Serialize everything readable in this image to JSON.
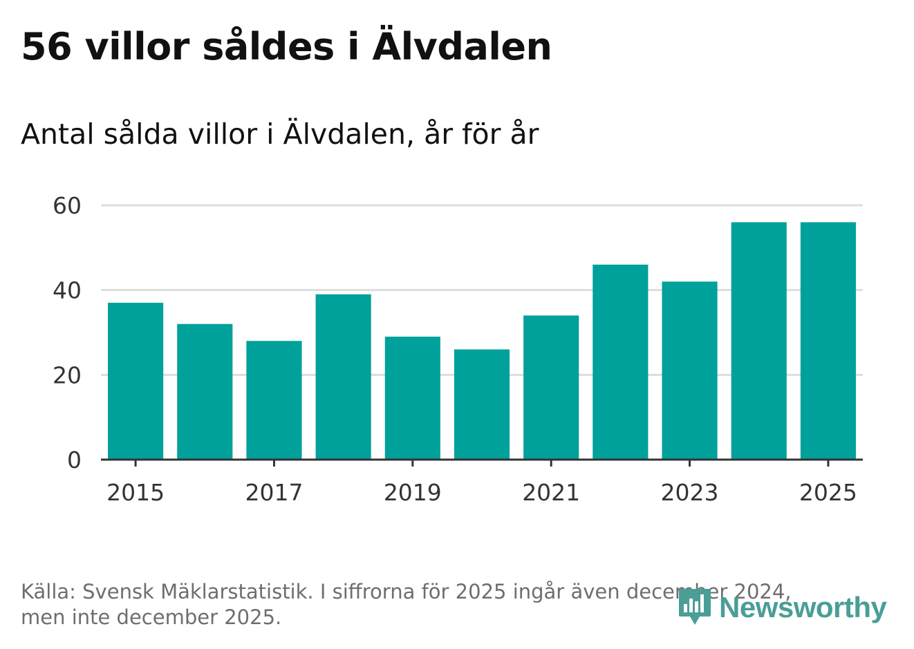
{
  "header": {
    "title": "56 villor såldes i Älvdalen",
    "subtitle": "Antal sålda villor i Älvdalen, år för år"
  },
  "footer": {
    "source_line1": "Källa: Svensk Mäklarstatistik. I siffrorna för 2025 ingår även december 2024,",
    "source_line2": "men inte december 2025."
  },
  "logo": {
    "text": "Newsworthy",
    "icon": "newsworthy-chart-bubble-icon",
    "color": "#4a9e96"
  },
  "chart_data": {
    "type": "bar",
    "title": "56 villor såldes i Älvdalen",
    "subtitle": "Antal sålda villor i Älvdalen, år för år",
    "xlabel": "",
    "ylabel": "",
    "categories": [
      "2015",
      "2016",
      "2017",
      "2018",
      "2019",
      "2020",
      "2021",
      "2022",
      "2023",
      "2024",
      "2025"
    ],
    "values": [
      37,
      32,
      28,
      39,
      29,
      26,
      34,
      46,
      42,
      56,
      56
    ],
    "x_tick_labels": [
      "2015",
      "2017",
      "2019",
      "2021",
      "2023",
      "2025"
    ],
    "y_ticks": [
      0,
      20,
      40,
      60
    ],
    "ylim": [
      0,
      60
    ],
    "grid": true,
    "bar_color": "#00a19a",
    "grid_color": "#dddddd",
    "axis_color": "#333333"
  }
}
